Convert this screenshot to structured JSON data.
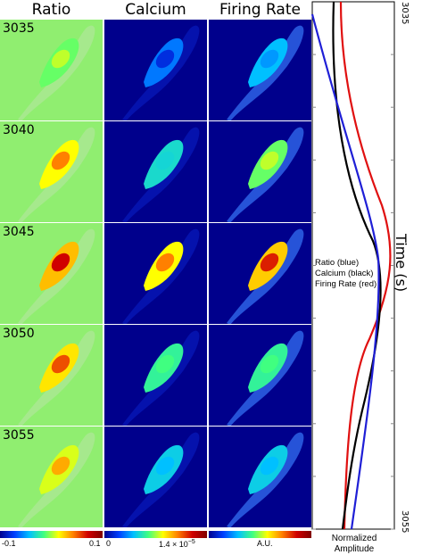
{
  "headers": [
    "Ratio",
    "Calcium",
    "Firing Rate"
  ],
  "time_labels": [
    "3035",
    "3040",
    "3045",
    "3050",
    "3055"
  ],
  "colorbars": {
    "ratio": {
      "min": "-0.1",
      "max": "0.1"
    },
    "calcium": {
      "min": "0",
      "max": "1.4 × 10"
    },
    "calcium_exp": "−5",
    "firing": {
      "label": "A.U."
    }
  },
  "plot": {
    "y_axis_title": "Time (s)",
    "y_top": "3035",
    "y_bottom": "3055",
    "x_axis_title_1": "Normalized",
    "x_axis_title_2": "Amplitude",
    "legend": [
      "Ratio (blue)",
      "Calcium (black)",
      "Firing Rate (red)"
    ],
    "series_colors": {
      "ratio": "#1f1fd6",
      "calcium": "#000000",
      "firing": "#e01010"
    }
  },
  "intensity": {
    "ratio": [
      0.55,
      0.75,
      0.88,
      0.8,
      0.7
    ],
    "calcium": [
      0.1,
      0.35,
      0.75,
      0.45,
      0.3
    ],
    "firing": [
      0.25,
      0.55,
      0.85,
      0.45,
      0.3
    ]
  }
}
